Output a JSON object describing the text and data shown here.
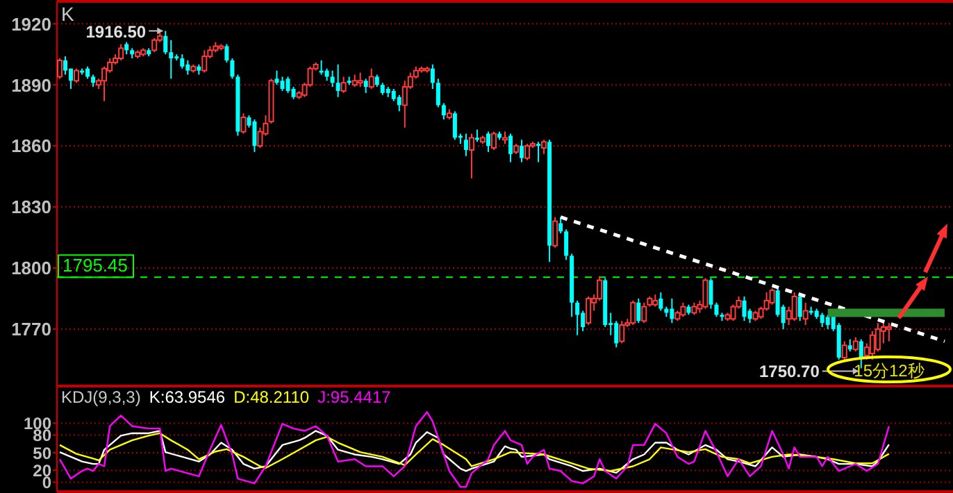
{
  "chart_data": [
    {
      "type": "candlestick",
      "title": "K",
      "categories": [
        null,
        null,
        null,
        null,
        null,
        null,
        null,
        null,
        null,
        null,
        null,
        null,
        null,
        null,
        null,
        null,
        null,
        null,
        null,
        null,
        null,
        null,
        null,
        null,
        null,
        null,
        null,
        null,
        null,
        null,
        null,
        null,
        null,
        null,
        null,
        null,
        null,
        null,
        null,
        null,
        null,
        null,
        null,
        null,
        null,
        null,
        null,
        null,
        null,
        null,
        null,
        null,
        null,
        null,
        null,
        null,
        null,
        null,
        null,
        null,
        null,
        null,
        null,
        null,
        null,
        null,
        null,
        null,
        null,
        null,
        null,
        null,
        null,
        null,
        null,
        null,
        null,
        null,
        null,
        null,
        null,
        null,
        null,
        null,
        null,
        null,
        null,
        null,
        null,
        null,
        null,
        null,
        null,
        null,
        null,
        null,
        null,
        null,
        null,
        null,
        null,
        null,
        null,
        null,
        null,
        null,
        null,
        null,
        null,
        null,
        null,
        null,
        null,
        null,
        null,
        null,
        null,
        null,
        null,
        null,
        null,
        null,
        null,
        null,
        null,
        null,
        null,
        null,
        null,
        null,
        null,
        null,
        null,
        null,
        null,
        null,
        null,
        null,
        null,
        null,
        null,
        null,
        null,
        null,
        null,
        null,
        null,
        null,
        null,
        null,
        null,
        null,
        null,
        null,
        null,
        null,
        null,
        null,
        null,
        null,
        null
      ],
      "ohlc": [
        [
          1894,
          1903,
          1893,
          1902
        ],
        [
          1902,
          1904,
          1895,
          1897
        ],
        [
          1898,
          1898,
          1888,
          1892
        ],
        [
          1892,
          1898,
          1891,
          1897
        ],
        [
          1897,
          1898,
          1895,
          1896
        ],
        [
          1898,
          1899,
          1893,
          1894
        ],
        [
          1894,
          1895,
          1889,
          1891
        ],
        [
          1890,
          1893,
          1888,
          1892
        ],
        [
          1892,
          1899,
          1882,
          1898
        ],
        [
          1897,
          1903,
          1896,
          1901
        ],
        [
          1901,
          1905,
          1900,
          1903
        ],
        [
          1903,
          1910,
          1902,
          1908
        ],
        [
          1910,
          1911,
          1905,
          1907
        ],
        [
          1907,
          1908,
          1903,
          1905
        ],
        [
          1904,
          1907,
          1903,
          1906
        ],
        [
          1905,
          1908,
          1904,
          1907
        ],
        [
          1907,
          1908,
          1904,
          1905
        ],
        [
          1907,
          1913,
          1906,
          1912
        ],
        [
          1912,
          1916,
          1911,
          1914
        ],
        [
          1914,
          1916.5,
          1905,
          1906
        ],
        [
          1906,
          1912,
          1893,
          1903
        ],
        [
          1904,
          1905,
          1902,
          1903
        ],
        [
          1903,
          1905,
          1898,
          1899
        ],
        [
          1900,
          1902,
          1895,
          1897
        ],
        [
          1897,
          1900,
          1896,
          1899
        ],
        [
          1899,
          1900,
          1895,
          1897
        ],
        [
          1897,
          1907,
          1896,
          1904
        ],
        [
          1904,
          1909,
          1903,
          1907
        ],
        [
          1907,
          1911,
          1906,
          1909
        ],
        [
          1908,
          1910,
          1907,
          1909
        ],
        [
          1909,
          1910,
          1901,
          1902
        ],
        [
          1902,
          1903,
          1893,
          1894
        ],
        [
          1894,
          1895,
          1865,
          1867
        ],
        [
          1867,
          1876,
          1866,
          1874
        ],
        [
          1874,
          1875,
          1869,
          1870
        ],
        [
          1872,
          1873,
          1857,
          1860
        ],
        [
          1860,
          1869,
          1859,
          1867
        ],
        [
          1866,
          1875,
          1865,
          1871
        ],
        [
          1872,
          1893,
          1871,
          1892
        ],
        [
          1893,
          1897,
          1890,
          1891
        ],
        [
          1892,
          1894,
          1887,
          1888
        ],
        [
          1893,
          1894,
          1886,
          1887
        ],
        [
          1888,
          1889,
          1883,
          1884
        ],
        [
          1884,
          1887,
          1883,
          1886
        ],
        [
          1885,
          1891,
          1884,
          1890
        ],
        [
          1890,
          1899,
          1889,
          1898
        ],
        [
          1898,
          1901,
          1897,
          1900
        ],
        [
          1897,
          1902,
          1895,
          1896
        ],
        [
          1897,
          1898,
          1892,
          1894
        ],
        [
          1894,
          1897,
          1889,
          1891
        ],
        [
          1891,
          1900,
          1884,
          1887
        ],
        [
          1887,
          1894,
          1886,
          1891
        ],
        [
          1892,
          1894,
          1890,
          1891
        ],
        [
          1890,
          1895,
          1889,
          1892
        ],
        [
          1891,
          1896,
          1889,
          1892
        ],
        [
          1892,
          1893,
          1886,
          1889
        ],
        [
          1889,
          1898,
          1888,
          1894
        ],
        [
          1894,
          1895,
          1889,
          1890
        ],
        [
          1890,
          1891,
          1885,
          1886
        ],
        [
          1888,
          1889,
          1884,
          1886
        ],
        [
          1887,
          1888,
          1882,
          1883
        ],
        [
          1884,
          1885,
          1877,
          1880
        ],
        [
          1880,
          1892,
          1869,
          1889
        ],
        [
          1889,
          1896,
          1888,
          1894
        ],
        [
          1894,
          1899,
          1893,
          1897
        ],
        [
          1897,
          1899,
          1896,
          1898
        ],
        [
          1897,
          1899,
          1896,
          1898
        ],
        [
          1898,
          1900,
          1888,
          1891
        ],
        [
          1891,
          1893,
          1879,
          1880
        ],
        [
          1880,
          1881,
          1873,
          1875
        ],
        [
          1874,
          1878,
          1873,
          1876
        ],
        [
          1876,
          1877,
          1863,
          1864
        ],
        [
          1865,
          1866,
          1861,
          1864
        ],
        [
          1863,
          1866,
          1855,
          1858
        ],
        [
          1858,
          1866,
          1844,
          1864
        ],
        [
          1864,
          1868,
          1862,
          1863
        ],
        [
          1862,
          1865,
          1861,
          1864
        ],
        [
          1866,
          1867,
          1857,
          1860
        ],
        [
          1859,
          1867,
          1858,
          1866
        ],
        [
          1866,
          1867,
          1863,
          1864
        ],
        [
          1863,
          1867,
          1861,
          1864
        ],
        [
          1865,
          1866,
          1852,
          1856
        ],
        [
          1857,
          1861,
          1856,
          1860
        ],
        [
          1860,
          1863,
          1852,
          1854
        ],
        [
          1854,
          1861,
          1853,
          1860
        ],
        [
          1860,
          1862,
          1859,
          1861
        ],
        [
          1861,
          1862,
          1852,
          1860
        ],
        [
          1859,
          1863,
          1856,
          1862
        ],
        [
          1862,
          1863,
          1803,
          1811
        ],
        [
          1811,
          1825,
          1810,
          1823
        ],
        [
          1822,
          1825,
          1817,
          1818
        ],
        [
          1818,
          1819,
          1804,
          1806
        ],
        [
          1806,
          1807,
          1776,
          1783
        ],
        [
          1783,
          1784,
          1767,
          1777
        ],
        [
          1778,
          1779,
          1769,
          1771
        ],
        [
          1773,
          1786,
          1772,
          1785
        ],
        [
          1783,
          1787,
          1779,
          1785
        ],
        [
          1785,
          1796,
          1784,
          1794
        ],
        [
          1794,
          1795,
          1771,
          1772
        ],
        [
          1773,
          1778,
          1767,
          1772
        ],
        [
          1773,
          1774,
          1761,
          1763
        ],
        [
          1764,
          1774,
          1763,
          1772
        ],
        [
          1772,
          1775,
          1771,
          1773
        ],
        [
          1773,
          1784,
          1772,
          1783
        ],
        [
          1783,
          1785,
          1773,
          1774
        ],
        [
          1774,
          1783,
          1773,
          1781
        ],
        [
          1782,
          1786,
          1781,
          1785
        ],
        [
          1782,
          1787,
          1781,
          1784
        ],
        [
          1785,
          1788,
          1779,
          1780
        ],
        [
          1780,
          1781,
          1776,
          1778
        ],
        [
          1780,
          1785,
          1773,
          1775
        ],
        [
          1775,
          1779,
          1774,
          1778
        ],
        [
          1777,
          1783,
          1776,
          1781
        ],
        [
          1781,
          1782,
          1777,
          1778
        ],
        [
          1778,
          1783,
          1777,
          1781
        ],
        [
          1780,
          1784,
          1778,
          1782
        ],
        [
          1781,
          1795,
          1780,
          1794
        ],
        [
          1794,
          1795,
          1780,
          1782
        ],
        [
          1782,
          1783,
          1776,
          1777
        ],
        [
          1777,
          1778,
          1774,
          1776
        ],
        [
          1775,
          1778,
          1774,
          1777
        ],
        [
          1775,
          1782,
          1774,
          1781
        ],
        [
          1781,
          1786,
          1780,
          1784
        ],
        [
          1784,
          1786,
          1774,
          1776
        ],
        [
          1779,
          1780,
          1773,
          1775
        ],
        [
          1775,
          1779,
          1774,
          1778
        ],
        [
          1776,
          1781,
          1775,
          1780
        ],
        [
          1780,
          1788,
          1779,
          1784
        ],
        [
          1783,
          1790,
          1782,
          1789
        ],
        [
          1789,
          1790,
          1776,
          1777
        ],
        [
          1781,
          1782,
          1770,
          1773
        ],
        [
          1775,
          1781,
          1772,
          1779
        ],
        [
          1775,
          1788,
          1774,
          1786
        ],
        [
          1786,
          1787,
          1774,
          1776
        ],
        [
          1775,
          1783,
          1772,
          1779
        ],
        [
          1779,
          1781,
          1777,
          1778
        ],
        [
          1779,
          1780,
          1775,
          1776
        ],
        [
          1777,
          1778,
          1771,
          1773
        ],
        [
          1776,
          1777,
          1770,
          1772
        ],
        [
          1777,
          1778,
          1769,
          1770
        ],
        [
          1772,
          1773,
          1755,
          1756
        ],
        [
          1756,
          1764,
          1754,
          1762
        ],
        [
          1762,
          1765,
          1759,
          1760
        ],
        [
          1760,
          1766,
          1759,
          1764
        ],
        [
          1764,
          1765,
          1750.7,
          1756
        ],
        [
          1757,
          1763,
          1755,
          1761
        ],
        [
          1758,
          1769,
          1755,
          1767
        ],
        [
          1760,
          1773,
          1759,
          1770
        ],
        [
          1769,
          1774,
          1763,
          1771
        ],
        [
          1770,
          1773,
          1764,
          1771
        ],
        null,
        null,
        null,
        null,
        null,
        null,
        null,
        null,
        null,
        null,
        null
      ],
      "series": [
        {
          "type": "line",
          "color": "#ffffff",
          "line_style": "dashed",
          "values": [
            null,
            null,
            null,
            null,
            null,
            null,
            null,
            null,
            null,
            null,
            null,
            null,
            null,
            null,
            null,
            null,
            null,
            null,
            null,
            null,
            null,
            null,
            null,
            null,
            null,
            null,
            null,
            null,
            null,
            null,
            null,
            null,
            null,
            null,
            null,
            null,
            null,
            null,
            null,
            null,
            null,
            null,
            null,
            null,
            null,
            null,
            null,
            null,
            null,
            null,
            null,
            null,
            null,
            null,
            null,
            null,
            null,
            null,
            null,
            null,
            null,
            null,
            null,
            null,
            null,
            null,
            null,
            null,
            null,
            null,
            null,
            null,
            null,
            null,
            null,
            null,
            null,
            null,
            null,
            null,
            null,
            null,
            null,
            null,
            null,
            null,
            null,
            null,
            null,
            null,
            1825,
            null,
            null,
            null,
            null,
            null,
            null,
            null,
            null,
            null,
            null,
            null,
            null,
            null,
            null,
            null,
            null,
            null,
            null,
            null,
            null,
            null,
            null,
            null,
            null,
            null,
            null,
            null,
            null,
            null,
            null,
            null,
            null,
            null,
            null,
            null,
            null,
            null,
            null,
            null,
            null,
            null,
            null,
            null,
            null,
            null,
            null,
            null,
            null,
            null,
            null,
            null,
            null,
            null,
            null,
            null,
            null,
            null,
            null,
            null,
            null,
            null,
            null,
            null,
            null,
            null,
            null,
            null,
            null,
            1764,
            null
          ]
        },
        {
          "type": "line",
          "color": "#2e8b2e",
          "line_style": "solid",
          "values": [
            null,
            null,
            null,
            null,
            null,
            null,
            null,
            null,
            null,
            null,
            null,
            null,
            null,
            null,
            null,
            null,
            null,
            null,
            null,
            null,
            null,
            null,
            null,
            null,
            null,
            null,
            null,
            null,
            null,
            null,
            null,
            null,
            null,
            null,
            null,
            null,
            null,
            null,
            null,
            null,
            null,
            null,
            null,
            null,
            null,
            null,
            null,
            null,
            null,
            null,
            null,
            null,
            null,
            null,
            null,
            null,
            null,
            null,
            null,
            null,
            null,
            null,
            null,
            null,
            null,
            null,
            null,
            null,
            null,
            null,
            null,
            null,
            null,
            null,
            null,
            null,
            null,
            null,
            null,
            null,
            null,
            null,
            null,
            null,
            null,
            null,
            null,
            null,
            null,
            null,
            null,
            null,
            null,
            null,
            null,
            null,
            null,
            null,
            null,
            null,
            null,
            null,
            null,
            null,
            null,
            null,
            null,
            null,
            null,
            null,
            null,
            null,
            null,
            null,
            null,
            null,
            null,
            null,
            null,
            null,
            null,
            null,
            null,
            null,
            null,
            null,
            null,
            null,
            null,
            null,
            null,
            null,
            null,
            null,
            null,
            null,
            null,
            null,
            1778,
            null,
            null,
            null,
            null,
            null,
            null,
            null,
            null,
            null,
            null,
            null,
            null,
            null,
            null,
            null,
            null,
            null,
            null,
            null,
            null,
            1778,
            null
          ]
        }
      ],
      "ylim": [
        1742,
        1931
      ],
      "yticks": [
        1770,
        1800,
        1830,
        1860,
        1890,
        1920
      ],
      "grid": "y",
      "ref_lines": [
        {
          "axis": "y",
          "value": 1795.45,
          "label": "1795.45",
          "color": "#00ff00",
          "line_style": "dashed"
        }
      ],
      "annotations": [
        "1916.50",
        "1750.70",
        "15分12秒"
      ]
    },
    {
      "type": "line",
      "title": "KDJ(9,3,3)",
      "legend": "top left",
      "categories": [
        null,
        null,
        null,
        null,
        null,
        null,
        null,
        null,
        null,
        null,
        null,
        null,
        null,
        null,
        null,
        null,
        null,
        null,
        null,
        null,
        null,
        null,
        null,
        null,
        null,
        null,
        null,
        null,
        null,
        null,
        null,
        null,
        null,
        null,
        null,
        null,
        null,
        null,
        null,
        null,
        null,
        null,
        null,
        null,
        null,
        null,
        null,
        null,
        null,
        null,
        null,
        null,
        null,
        null,
        null,
        null,
        null,
        null,
        null,
        null,
        null,
        null,
        null,
        null,
        null,
        null,
        null,
        null,
        null,
        null,
        null,
        null,
        null,
        null,
        null,
        null,
        null,
        null,
        null,
        null,
        null,
        null,
        null,
        null,
        null,
        null,
        null,
        null,
        null,
        null,
        null,
        null,
        null,
        null,
        null,
        null,
        null,
        null,
        null,
        null,
        null,
        null,
        null,
        null,
        null,
        null,
        null,
        null,
        null,
        null,
        null,
        null,
        null,
        null,
        null,
        null,
        null,
        null,
        null,
        null,
        null,
        null,
        null,
        null,
        null,
        null,
        null,
        null,
        null,
        null,
        null,
        null,
        null,
        null,
        null,
        null,
        null,
        null,
        null,
        null,
        null,
        null,
        null,
        null,
        null,
        null,
        null,
        null,
        null,
        null,
        null,
        null,
        null,
        null,
        null,
        null,
        null,
        null,
        null,
        null,
        null
      ],
      "ylim": [
        -16,
        163
      ],
      "yticks": [
        0,
        20,
        50,
        80,
        100
      ],
      "grid": "y",
      "series": [
        {
          "name": "K:63.9546",
          "color": "#ffffff",
          "values": [
            51,
            null,
            43,
            null,
            35,
            null,
            31,
            31,
            55,
            null,
            null,
            79,
            null,
            83,
            null,
            null,
            83,
            null,
            87,
            51,
            null,
            null,
            43,
            null,
            null,
            35,
            null,
            47,
            null,
            67,
            null,
            55,
            null,
            31,
            null,
            23,
            null,
            27,
            null,
            null,
            63,
            null,
            null,
            71,
            75,
            null,
            87,
            null,
            79,
            null,
            55,
            null,
            null,
            47,
            null,
            null,
            43,
            null,
            39,
            null,
            null,
            31,
            null,
            47,
            67,
            null,
            85,
            null,
            75,
            47,
            null,
            null,
            23,
            19,
            23,
            null,
            null,
            null,
            35,
            null,
            61,
            57,
            55,
            43,
            null,
            null,
            null,
            47,
            39,
            null,
            null,
            null,
            27,
            null,
            19,
            null,
            null,
            23,
            null,
            null,
            16,
            null,
            null,
            39,
            null,
            47,
            null,
            67,
            null,
            67,
            null,
            55,
            null,
            47,
            null,
            null,
            63,
            null,
            55,
            null,
            39,
            null,
            35,
            null,
            null,
            27,
            null,
            null,
            59,
            null,
            43,
            null,
            null,
            47,
            null,
            null,
            43,
            null,
            39,
            null,
            31,
            null,
            null,
            31,
            null,
            null,
            27,
            35,
            null,
            64,
            null,
            null,
            null,
            null,
            null,
            null,
            null,
            null,
            null,
            null,
            null
          ]
        },
        {
          "name": "D:48.2110",
          "color": "#ffff00",
          "values": [
            63,
            null,
            null,
            48,
            null,
            null,
            40,
            37,
            null,
            55,
            null,
            null,
            null,
            71,
            null,
            null,
            79,
            null,
            83,
            null,
            71,
            null,
            null,
            55,
            null,
            39,
            null,
            null,
            52,
            null,
            56,
            null,
            null,
            43,
            null,
            null,
            27,
            24,
            null,
            null,
            39,
            null,
            null,
            55,
            null,
            null,
            71,
            null,
            77,
            null,
            67,
            null,
            null,
            null,
            51,
            null,
            null,
            null,
            43,
            null,
            null,
            null,
            29,
            null,
            47,
            null,
            null,
            73,
            null,
            63,
            null,
            null,
            null,
            39,
            27,
            null,
            null,
            null,
            39,
            null,
            null,
            51,
            null,
            null,
            null,
            null,
            null,
            47,
            null,
            null,
            null,
            35,
            null,
            null,
            null,
            23,
            null,
            null,
            null,
            19,
            null,
            null,
            null,
            27,
            null,
            null,
            39,
            null,
            59,
            null,
            null,
            null,
            null,
            51,
            null,
            null,
            56,
            null,
            null,
            43,
            null,
            null,
            39,
            null,
            32,
            null,
            null,
            null,
            43,
            null,
            null,
            47,
            null,
            null,
            45,
            null,
            null,
            null,
            null,
            39,
            null,
            null,
            null,
            32,
            null,
            null,
            32,
            null,
            null,
            48,
            null,
            null,
            null,
            null,
            null,
            null,
            null,
            null,
            null,
            null,
            null
          ]
        },
        {
          "name": "J:95.4417",
          "color": "#ff00ff",
          "values": [
            39,
            null,
            6,
            null,
            19,
            23,
            19,
            31,
            27,
            95,
            null,
            113,
            null,
            95,
            null,
            null,
            91,
            null,
            91,
            19,
            23,
            null,
            null,
            15,
            null,
            10,
            null,
            55,
            null,
            97,
            null,
            47,
            6,
            null,
            null,
            -2,
            null,
            27,
            null,
            null,
            99,
            null,
            91,
            null,
            87,
            null,
            95,
            null,
            79,
            null,
            35,
            null,
            null,
            39,
            null,
            27,
            null,
            null,
            27,
            null,
            10,
            null,
            27,
            null,
            95,
            null,
            119,
            103,
            null,
            47,
            19,
            null,
            -8,
            -8,
            15,
            null,
            null,
            39,
            63,
            null,
            87,
            71,
            null,
            63,
            31,
            43,
            null,
            55,
            23,
            null,
            19,
            null,
            2,
            null,
            -2,
            null,
            10,
            39,
            19,
            null,
            6,
            null,
            27,
            63,
            null,
            63,
            null,
            99,
            null,
            83,
            null,
            43,
            null,
            31,
            35,
            null,
            87,
            null,
            51,
            null,
            10,
            null,
            39,
            null,
            10,
            null,
            27,
            null,
            87,
            null,
            47,
            23,
            59,
            43,
            null,
            null,
            43,
            27,
            43,
            null,
            19,
            null,
            27,
            31,
            null,
            19,
            null,
            31,
            null,
            95,
            null,
            null,
            null,
            null,
            null,
            null,
            null,
            null,
            null,
            null,
            null
          ]
        }
      ]
    }
  ]
}
